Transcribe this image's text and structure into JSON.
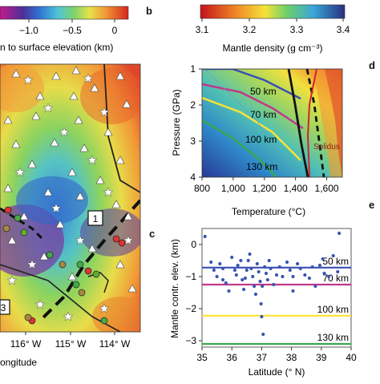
{
  "panel_a": {
    "colorbar_ticks": [
      "−1.0",
      "−0.5",
      "0"
    ],
    "colorbar_label": "n to surface elevation (km)",
    "lon_labels": [
      "116° W",
      "115° W",
      "114° W"
    ],
    "xaxis_label": "ongitude",
    "box_labels": [
      "1",
      "3"
    ]
  },
  "panel_b": {
    "letter": "b",
    "colorbar_ticks": [
      "3.1",
      "3.2",
      "3.3",
      "3.4"
    ],
    "colorbar_label": "Mantle density (g cm⁻³)",
    "xlabel": "Temperature (°C)",
    "ylabel": "Pressure (GPa)",
    "xticks": [
      "800",
      "1,000",
      "1,200",
      "1,400",
      "1,600"
    ],
    "yticks": [
      "1",
      "2",
      "3",
      "4"
    ],
    "curve_labels": [
      "50 km",
      "70 km",
      "100 km",
      "130 km"
    ],
    "solidus_label": "Solidus",
    "colors": {
      "50": "#3a4fb5",
      "70": "#c0398a",
      "100": "#ffe135",
      "130": "#38a852",
      "solidus": "#d0242c"
    }
  },
  "panel_c": {
    "letter": "c",
    "xlabel": "Latitude (° N)",
    "ylabel": "Mantle contr. elev. (km)",
    "chart_data": {
      "type": "scatter",
      "xlabel": "Latitude (° N)",
      "ylabel": "Mantle contr. elev. (km)",
      "xlim": [
        35,
        40
      ],
      "ylim": [
        -3.2,
        0.5
      ],
      "xticks": [
        35,
        36,
        37,
        38,
        39,
        40
      ],
      "yticks": [
        0,
        -1,
        -2,
        -3
      ],
      "points": [
        [
          35.1,
          0.25
        ],
        [
          35.3,
          -0.55
        ],
        [
          35.4,
          -0.8
        ],
        [
          35.5,
          -1.0
        ],
        [
          35.6,
          -0.6
        ],
        [
          35.7,
          -0.75
        ],
        [
          35.8,
          -1.2
        ],
        [
          35.9,
          -1.45
        ],
        [
          35.7,
          -1.1
        ],
        [
          36.0,
          -0.4
        ],
        [
          36.1,
          -0.8
        ],
        [
          36.15,
          -0.95
        ],
        [
          36.2,
          -0.65
        ],
        [
          36.3,
          -0.5
        ],
        [
          36.35,
          -1.1
        ],
        [
          36.4,
          -1.4
        ],
        [
          36.45,
          -1.05
        ],
        [
          36.5,
          -0.8
        ],
        [
          36.55,
          -0.5
        ],
        [
          36.6,
          -0.3
        ],
        [
          36.65,
          -0.75
        ],
        [
          36.7,
          -1.0
        ],
        [
          36.75,
          -1.3
        ],
        [
          36.8,
          -1.55
        ],
        [
          36.85,
          -0.6
        ],
        [
          36.9,
          -0.85
        ],
        [
          36.95,
          -1.15
        ],
        [
          37.0,
          -2.25
        ],
        [
          37.05,
          -2.8
        ],
        [
          36.98,
          -1.85
        ],
        [
          37.02,
          -1.3
        ],
        [
          37.1,
          -0.7
        ],
        [
          37.15,
          -0.9
        ],
        [
          37.2,
          -1.1
        ],
        [
          37.25,
          -0.5
        ],
        [
          37.3,
          -0.75
        ],
        [
          37.4,
          -1.25
        ],
        [
          37.5,
          -0.95
        ],
        [
          37.6,
          -0.7
        ],
        [
          37.7,
          -1.0
        ],
        [
          37.85,
          -0.55
        ],
        [
          37.95,
          -0.8
        ],
        [
          38.05,
          -1.0
        ],
        [
          38.2,
          -0.6
        ],
        [
          38.3,
          -0.75
        ],
        [
          38.45,
          -0.95
        ],
        [
          38.6,
          -1.05
        ],
        [
          38.7,
          -0.7
        ],
        [
          38.8,
          -1.3
        ],
        [
          38.95,
          -0.65
        ],
        [
          39.05,
          -0.45
        ],
        [
          39.1,
          -0.9
        ],
        [
          39.25,
          -1.0
        ],
        [
          39.4,
          -0.35
        ],
        [
          39.55,
          -0.85
        ],
        [
          39.6,
          0.35
        ],
        [
          38.05,
          -1.45
        ]
      ],
      "hlines": [
        {
          "name": "50 km",
          "y": -0.72,
          "color": "#3a4fb5"
        },
        {
          "name": "70 km",
          "y": -1.25,
          "color": "#c0398a"
        },
        {
          "name": "100 km",
          "y": -2.22,
          "color": "#ffe135"
        },
        {
          "name": "130 km",
          "y": -3.1,
          "color": "#38a852"
        }
      ]
    }
  },
  "panel_d_letter": "d",
  "panel_e_letter": "e"
}
